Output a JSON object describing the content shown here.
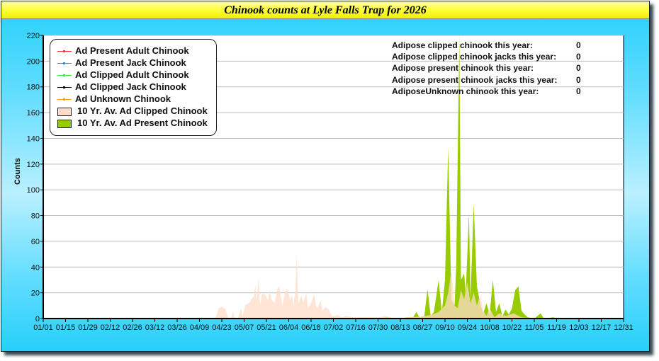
{
  "title": "Chinook counts at Lyle Falls Trap for 2026",
  "stats": [
    {
      "label": "Adipose clipped chinook this year:",
      "value": "0"
    },
    {
      "label": "Adipose clipped chinook jacks this year:",
      "value": "0"
    },
    {
      "label": "Adipose present chinook this year:",
      "value": "0"
    },
    {
      "label": "Adipose present chinook jacks this year:",
      "value": "0"
    },
    {
      "label": "AdiposeUnknown chinook this year:",
      "value": "0"
    }
  ],
  "chart_data": {
    "type": "area",
    "title": "Chinook counts at Lyle Falls Trap for 2026",
    "xlabel": "",
    "ylabel": "Counts",
    "ylim": [
      0,
      220
    ],
    "yticks": [
      "0",
      "20",
      "40",
      "60",
      "80",
      "100",
      "120",
      "140",
      "160",
      "180",
      "200",
      "220"
    ],
    "xticks": [
      "01/01",
      "01/15",
      "01/29",
      "02/12",
      "02/26",
      "03/12",
      "03/26",
      "04/09",
      "04/23",
      "05/07",
      "05/21",
      "06/04",
      "06/18",
      "07/02",
      "07/16",
      "07/30",
      "08/13",
      "08/27",
      "09/10",
      "09/24",
      "10/08",
      "10/22",
      "11/05",
      "11/19",
      "12/03",
      "12/17",
      "12/31"
    ],
    "x_unit": "day of year",
    "grid": true,
    "legend_position": "top-left",
    "legend": [
      {
        "name": "Ad Present Adult Chinook",
        "kind": "line",
        "color": "#ff3333"
      },
      {
        "name": "Ad Present Jack Chinook",
        "kind": "line",
        "color": "#1e90ff"
      },
      {
        "name": "Ad Clipped Adult Chinook",
        "kind": "line",
        "color": "#33ee33"
      },
      {
        "name": "Ad Clipped Jack Chinook",
        "kind": "line",
        "color": "#000000"
      },
      {
        "name": "Ad Unknown Chinook",
        "kind": "line",
        "color": "#ff9900"
      },
      {
        "name": "10 Yr. Av. Ad Clipped Chinook",
        "kind": "area",
        "color": "#ffdcc8"
      },
      {
        "name": "10 Yr. Av. Ad Present Chinook",
        "kind": "area",
        "color": "#99cc00"
      }
    ],
    "series": [
      {
        "name": "10 Yr. Av. Ad Present Chinook",
        "color": "#99cc00",
        "points": [
          [
            0,
            0
          ],
          [
            210,
            0
          ],
          [
            215,
            1
          ],
          [
            225,
            0
          ],
          [
            228,
            1
          ],
          [
            232,
            1
          ],
          [
            234,
            5
          ],
          [
            236,
            1
          ],
          [
            239,
            2
          ],
          [
            241,
            23
          ],
          [
            243,
            2
          ],
          [
            245,
            5
          ],
          [
            248,
            30
          ],
          [
            250,
            5
          ],
          [
            252,
            30
          ],
          [
            254,
            133
          ],
          [
            256,
            15
          ],
          [
            258,
            10
          ],
          [
            259,
            40
          ],
          [
            261,
            220
          ],
          [
            262,
            30
          ],
          [
            264,
            35
          ],
          [
            265,
            20
          ],
          [
            267,
            82
          ],
          [
            268,
            15
          ],
          [
            270,
            89
          ],
          [
            272,
            25
          ],
          [
            274,
            12
          ],
          [
            276,
            4
          ],
          [
            278,
            12
          ],
          [
            280,
            3
          ],
          [
            282,
            30
          ],
          [
            284,
            5
          ],
          [
            286,
            12
          ],
          [
            288,
            2
          ],
          [
            290,
            7
          ],
          [
            292,
            3
          ],
          [
            294,
            8
          ],
          [
            296,
            22
          ],
          [
            298,
            25
          ],
          [
            300,
            6
          ],
          [
            302,
            3
          ],
          [
            304,
            1
          ],
          [
            308,
            0
          ],
          [
            312,
            4
          ],
          [
            314,
            0
          ],
          [
            320,
            1
          ],
          [
            322,
            0
          ],
          [
            364,
            0
          ]
        ]
      },
      {
        "name": "10 Yr. Av. Ad Clipped Chinook",
        "color": "#ffdcc8",
        "points": [
          [
            0,
            0
          ],
          [
            108,
            0
          ],
          [
            110,
            8
          ],
          [
            112,
            9
          ],
          [
            114,
            8
          ],
          [
            116,
            1
          ],
          [
            118,
            0
          ],
          [
            119,
            6
          ],
          [
            120,
            0
          ],
          [
            122,
            0
          ],
          [
            124,
            8
          ],
          [
            125,
            2
          ],
          [
            127,
            11
          ],
          [
            129,
            12
          ],
          [
            131,
            16
          ],
          [
            132,
            17
          ],
          [
            133,
            26
          ],
          [
            134,
            14
          ],
          [
            135,
            32
          ],
          [
            136,
            10
          ],
          [
            137,
            19
          ],
          [
            139,
            19
          ],
          [
            141,
            14
          ],
          [
            142,
            22
          ],
          [
            143,
            15
          ],
          [
            145,
            12
          ],
          [
            147,
            24
          ],
          [
            148,
            25
          ],
          [
            150,
            10
          ],
          [
            152,
            22
          ],
          [
            153,
            23
          ],
          [
            155,
            14
          ],
          [
            156,
            18
          ],
          [
            157,
            10
          ],
          [
            158,
            20
          ],
          [
            159,
            50
          ],
          [
            160,
            12
          ],
          [
            162,
            18
          ],
          [
            163,
            12
          ],
          [
            165,
            20
          ],
          [
            166,
            8
          ],
          [
            168,
            12
          ],
          [
            170,
            19
          ],
          [
            171,
            10
          ],
          [
            172,
            8
          ],
          [
            174,
            14
          ],
          [
            175,
            6
          ],
          [
            177,
            9
          ],
          [
            179,
            7
          ],
          [
            181,
            2
          ],
          [
            183,
            2
          ],
          [
            185,
            3
          ],
          [
            187,
            1
          ],
          [
            190,
            2
          ],
          [
            195,
            1
          ],
          [
            200,
            1
          ],
          [
            210,
            1
          ],
          [
            215,
            2
          ],
          [
            220,
            0
          ],
          [
            230,
            1
          ],
          [
            240,
            2
          ],
          [
            244,
            3
          ],
          [
            248,
            5
          ],
          [
            252,
            10
          ],
          [
            254,
            20
          ],
          [
            256,
            37
          ],
          [
            258,
            10
          ],
          [
            260,
            8
          ],
          [
            262,
            22
          ],
          [
            264,
            15
          ],
          [
            266,
            28
          ],
          [
            268,
            12
          ],
          [
            270,
            20
          ],
          [
            272,
            10
          ],
          [
            274,
            18
          ],
          [
            276,
            6
          ],
          [
            278,
            2
          ],
          [
            280,
            8
          ],
          [
            283,
            1
          ],
          [
            286,
            4
          ],
          [
            290,
            2
          ],
          [
            295,
            4
          ],
          [
            300,
            1
          ],
          [
            310,
            0
          ],
          [
            364,
            0
          ]
        ]
      }
    ]
  }
}
